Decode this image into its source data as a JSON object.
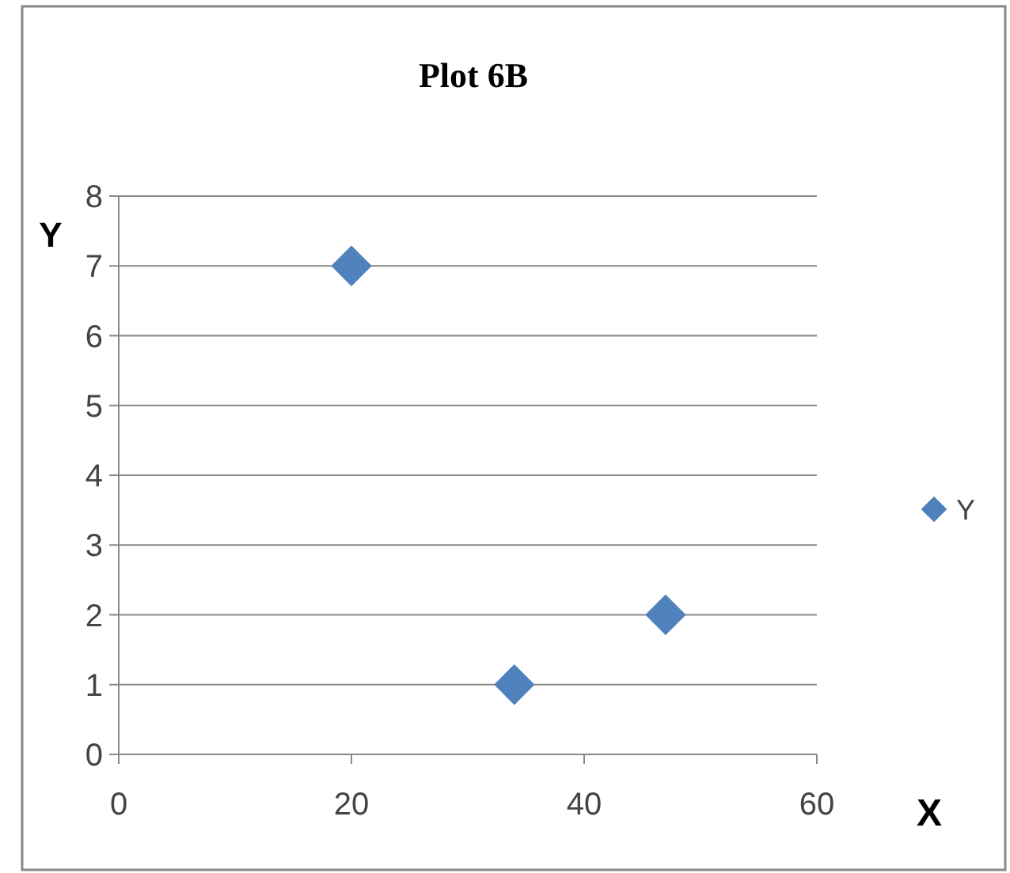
{
  "chart_data": {
    "type": "scatter",
    "title": "Plot 6B",
    "xlabel": "X",
    "ylabel": "Y",
    "x": [
      20,
      34,
      47
    ],
    "series": [
      {
        "name": "Y",
        "color": "#4f81bd",
        "values": [
          7,
          1,
          2
        ]
      }
    ],
    "xlim": [
      0,
      60
    ],
    "xticks": [
      0,
      20,
      40,
      60
    ],
    "ylim": [
      0,
      8
    ],
    "yticks": [
      0,
      1,
      2,
      3,
      4,
      5,
      6,
      7,
      8
    ],
    "grid": "y",
    "legend": "right",
    "marker": "diamond"
  }
}
